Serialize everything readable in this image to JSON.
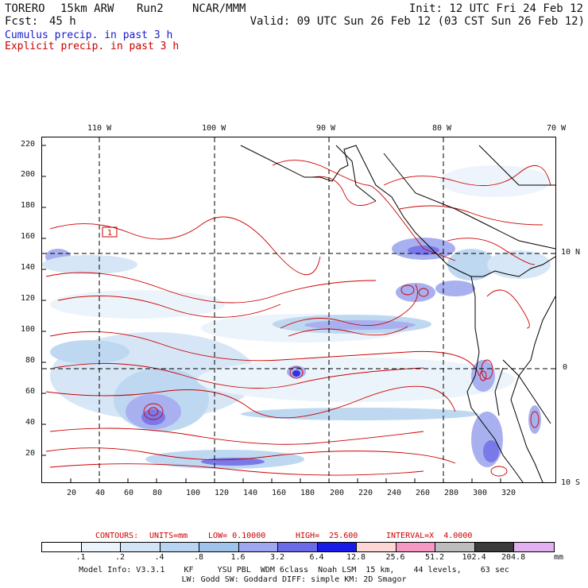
{
  "header": {
    "model": "TORERO",
    "resolution": "15km ARW",
    "run": "Run2",
    "org": "NCAR/MMM",
    "init": "Init: 12 UTC Fri 24 Feb 12",
    "fcst_label": "Fcst:",
    "fcst_value": "45 h",
    "valid": "Valid: 09 UTC Sun 26 Feb 12 (03 CST Sun 26 Feb 12)"
  },
  "legend": {
    "cumulus": {
      "label": "Cumulus precip. in past 3 h",
      "color": "#1a1acc"
    },
    "explicit": {
      "label": "Explicit precip. in past 3 h",
      "color": "#cc0000"
    }
  },
  "map": {
    "top_lon_labels": [
      "110 W",
      "100 W",
      "90 W",
      "80 W",
      "70 W"
    ],
    "right_lat_labels": [
      "10 N",
      "0",
      "10 S"
    ],
    "left_y_ticks": [
      "220",
      "200",
      "180",
      "160",
      "140",
      "120",
      "100",
      "80",
      "60",
      "40",
      "20"
    ],
    "bottom_x_ticks": [
      "20",
      "40",
      "60",
      "80",
      "100",
      "120",
      "140",
      "160",
      "180",
      "200",
      "220",
      "240",
      "260",
      "280",
      "300",
      "320"
    ],
    "box_marker_label": "1"
  },
  "contours": {
    "prefix": "CONTOURS:",
    "units": "UNITS=mm",
    "low": "LOW= 0.10000",
    "high": "HIGH=  25.600",
    "interval": "INTERVAL=X  4.0000"
  },
  "colorbar": {
    "unit": "mm",
    "labels": [
      ".1",
      ".2",
      ".4",
      ".8",
      "1.6",
      "3.2",
      "6.4",
      "12.8",
      "25.6",
      "51.2",
      "102.4",
      "204.8"
    ],
    "colors": [
      "#ffffff",
      "#ebf3fb",
      "#d2e4f6",
      "#b8d4f0",
      "#9fc3ea",
      "#9fa8ee",
      "#6b6be8",
      "#1a1ae6",
      "#fdd6d6",
      "#f598c3",
      "#bdbdbd",
      "#3c3c3c",
      "#e0b0f0"
    ]
  },
  "model_info": {
    "line1": "Model Info: V3.3.1    KF     YSU PBL  WDM 6class  Noah LSM  15 km,    44 levels,    63 sec",
    "line2": "LW: Godd SW: Goddard DIFF: simple KM: 2D Smagor"
  }
}
